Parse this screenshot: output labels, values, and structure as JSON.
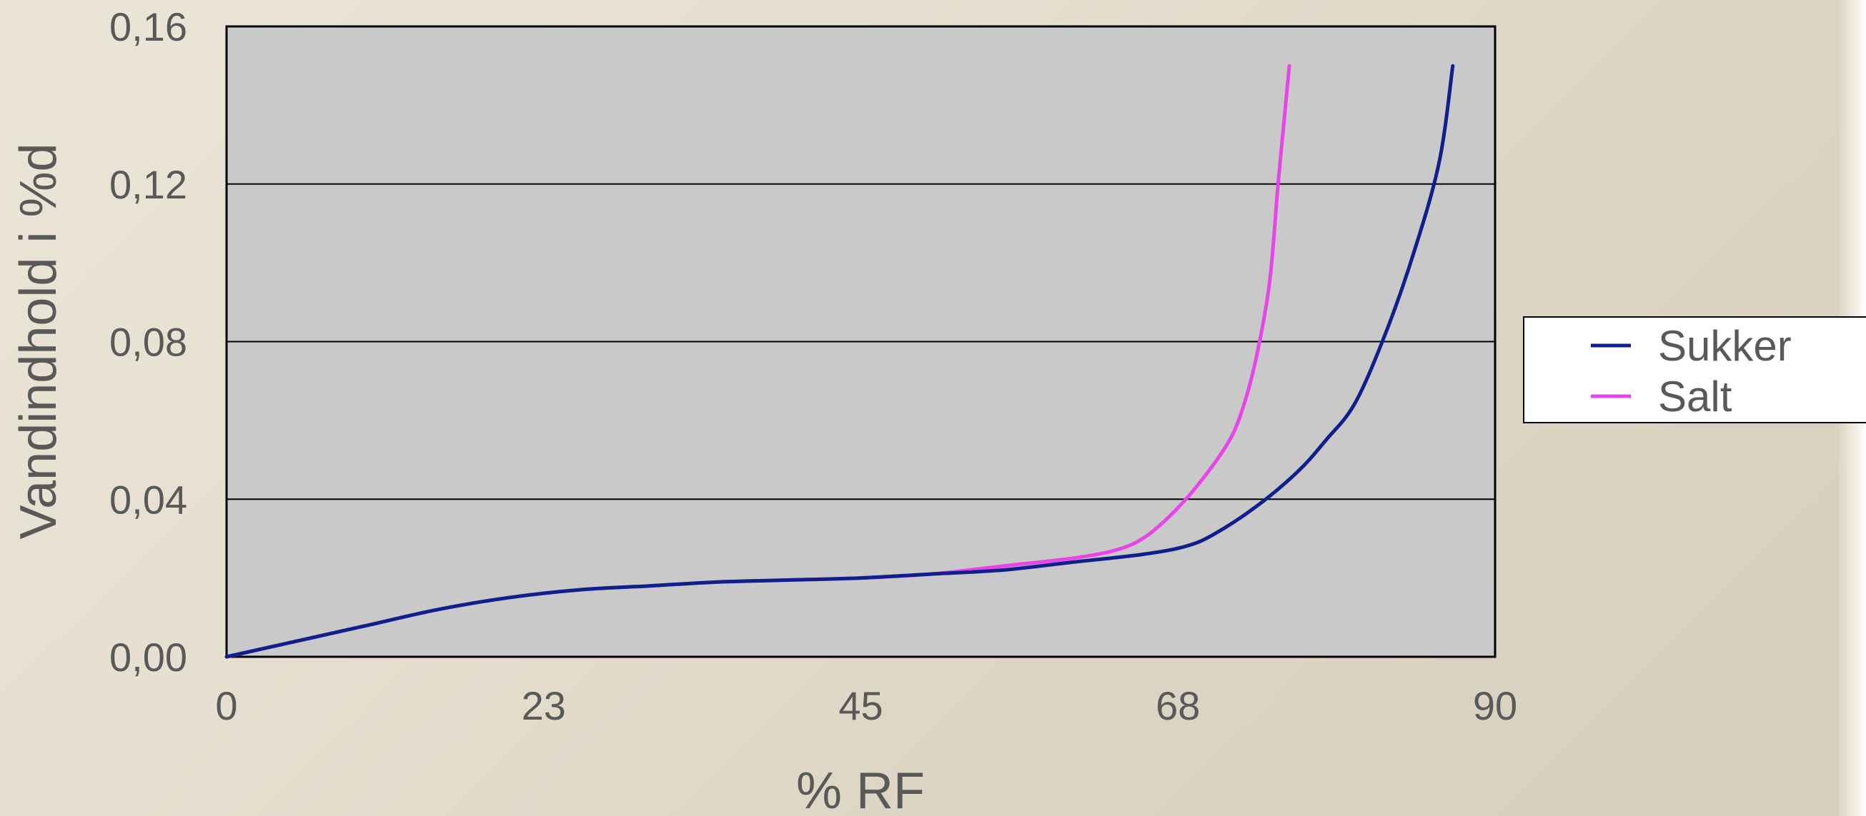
{
  "chart_data": {
    "type": "line",
    "title": "",
    "xlabel": "% RF",
    "ylabel": "Vandindhold i %d",
    "xlim": [
      0,
      90
    ],
    "ylim": [
      0,
      0.16
    ],
    "xticks": [
      0,
      22.5,
      45,
      67.5,
      90
    ],
    "xtick_labels": [
      "0",
      "23",
      "45",
      "68",
      "90"
    ],
    "yticks": [
      0,
      0.04,
      0.08,
      0.12,
      0.16
    ],
    "ytick_labels": [
      "0,00",
      "0,04",
      "0,08",
      "0,12",
      "0,16"
    ],
    "grid": "horizontal",
    "legend_position": "right",
    "series": [
      {
        "name": "Sukker",
        "color": "#0f1f8c",
        "points": [
          [
            0,
            0
          ],
          [
            5,
            0.004
          ],
          [
            10,
            0.008
          ],
          [
            15,
            0.012
          ],
          [
            20,
            0.015
          ],
          [
            25,
            0.017
          ],
          [
            30,
            0.018
          ],
          [
            35,
            0.019
          ],
          [
            40,
            0.0195
          ],
          [
            45,
            0.02
          ],
          [
            50,
            0.021
          ],
          [
            55,
            0.022
          ],
          [
            60,
            0.024
          ],
          [
            65,
            0.026
          ],
          [
            68,
            0.028
          ],
          [
            70,
            0.031
          ],
          [
            73,
            0.038
          ],
          [
            76,
            0.047
          ],
          [
            78,
            0.055
          ],
          [
            80,
            0.064
          ],
          [
            82,
            0.08
          ],
          [
            84,
            0.1
          ],
          [
            86,
            0.125
          ],
          [
            87,
            0.15
          ]
        ]
      },
      {
        "name": "Salt",
        "color": "#e845e8",
        "points": [
          [
            0,
            0
          ],
          [
            5,
            0.004
          ],
          [
            10,
            0.008
          ],
          [
            15,
            0.012
          ],
          [
            20,
            0.015
          ],
          [
            25,
            0.017
          ],
          [
            30,
            0.018
          ],
          [
            35,
            0.019
          ],
          [
            40,
            0.0195
          ],
          [
            45,
            0.02
          ],
          [
            50,
            0.021
          ],
          [
            55,
            0.023
          ],
          [
            60,
            0.025
          ],
          [
            63,
            0.027
          ],
          [
            65,
            0.03
          ],
          [
            67,
            0.036
          ],
          [
            69,
            0.044
          ],
          [
            71,
            0.054
          ],
          [
            72,
            0.062
          ],
          [
            73,
            0.075
          ],
          [
            74,
            0.095
          ],
          [
            74.6,
            0.12
          ],
          [
            75,
            0.135
          ],
          [
            75.4,
            0.15
          ]
        ]
      }
    ]
  }
}
